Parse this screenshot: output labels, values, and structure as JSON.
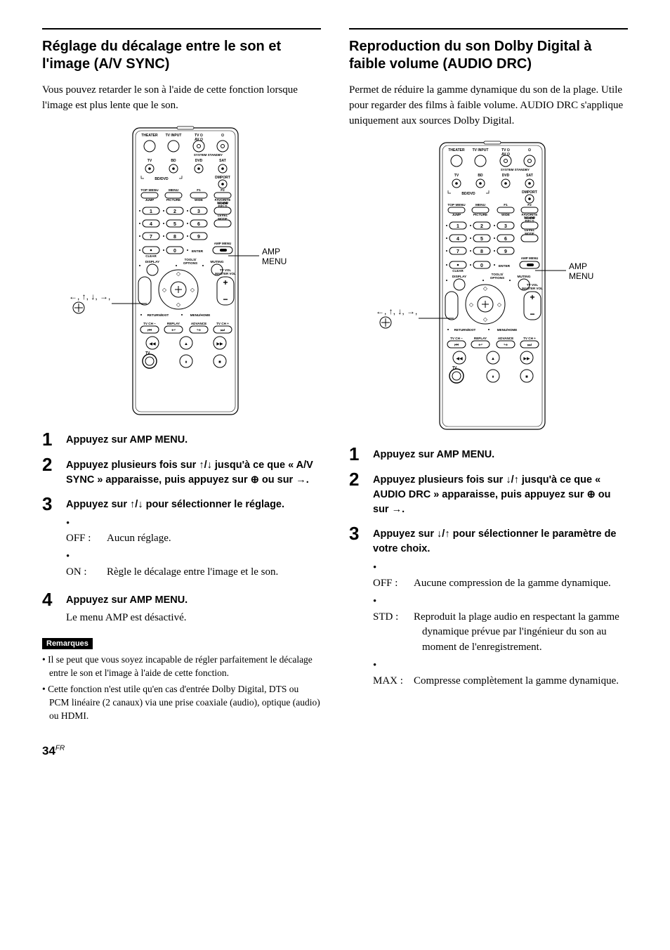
{
  "page_number": "34",
  "page_lang_suffix": "FR",
  "left": {
    "title": "Réglage du décalage entre le son et l'image (A/V SYNC)",
    "intro": "Vous pouvez retarder le son à l'aide de cette fonction lorsque l'image est plus lente que le son.",
    "steps": [
      {
        "n": "1",
        "title": "Appuyez sur AMP MENU."
      },
      {
        "n": "2",
        "title": "Appuyez plusieurs fois sur ↑/↓ jusqu'à ce que « A/V SYNC » apparaisse, puis appuyez sur ⊕ ou sur →."
      },
      {
        "n": "3",
        "title": "Appuyez sur ↑/↓ pour sélectionner le réglage.",
        "bullets": [
          {
            "key": "OFF :",
            "val": "Aucun réglage."
          },
          {
            "key": "ON :",
            "val": "Règle le décalage entre l'image et le son."
          }
        ]
      },
      {
        "n": "4",
        "title": "Appuyez sur AMP MENU.",
        "body": "Le menu AMP est désactivé."
      }
    ],
    "remarques_label": "Remarques",
    "remarques": [
      "Il se peut que vous soyez incapable de régler parfaitement le décalage entre le son et l'image à l'aide de cette fonction.",
      "Cette fonction n'est utile qu'en cas d'entrée Dolby Digital, DTS ou PCM linéaire (2 canaux) via une prise coaxiale (audio), optique (audio) ou HDMI."
    ]
  },
  "right": {
    "title": "Reproduction du son Dolby Digital à faible volume (AUDIO DRC)",
    "intro": "Permet de réduire la gamme dynamique du son de la plage. Utile pour regarder des films à faible volume. AUDIO DRC s'applique uniquement aux sources Dolby Digital.",
    "steps": [
      {
        "n": "1",
        "title": "Appuyez sur AMP MENU."
      },
      {
        "n": "2",
        "title": "Appuyez plusieurs fois sur ↓/↑ jusqu'à ce que « AUDIO DRC » apparaisse, puis appuyez sur ⊕ ou sur →."
      },
      {
        "n": "3",
        "title": "Appuyez sur ↓/↑ pour sélectionner le paramètre de votre choix.",
        "bullets": [
          {
            "key": "OFF :",
            "val": "Aucune compression de la gamme dynamique."
          },
          {
            "key": "STD :",
            "val": "Reproduit la plage audio en respectant la gamme dynamique prévue par l'ingénieur du son au moment de l'enregistrement."
          },
          {
            "key": "MAX :",
            "val": "Compresse complètement la gamme dynamique."
          }
        ]
      }
    ]
  },
  "remote": {
    "callout_amp": "AMP MENU",
    "callout_arrows": "←, ↑, ↓, →,",
    "top_row": [
      "THEATER",
      "TV INPUT",
      "TV ⏻\nAV ⏻",
      "⏻"
    ],
    "standby": "SYSTEM STANDBY",
    "src_row": [
      "TV",
      "BD",
      "DVD",
      "SAT"
    ],
    "dmport": "DMPORT",
    "bddvd": "BD/DVD",
    "menu_row1": [
      "TOP MENU",
      "MENU",
      "F1",
      "F2"
    ],
    "menu_row2": [
      "JUMP",
      "PICTURE",
      "WIDE",
      "FAVORITE\nGUIDE"
    ],
    "field_labels": [
      "SOUND\nFIELD",
      "LEVEL\nMODE",
      "AMP MENU"
    ],
    "clear": "CLEAR",
    "enter": "ENTER",
    "disp_row": [
      "DISPLAY",
      "TOOLS/\nOPTIONS",
      "MUTING"
    ],
    "vol": "TV VOL\nMASTER VOL",
    "return": "RETURN/EXIT",
    "menuhome": "MENU/HOME",
    "bottom_row": [
      "TV CH −",
      "REPLAY",
      "ADVANCE",
      "TV CH +"
    ],
    "tv_label": "TV",
    "colors": {
      "callout_line": "#000000",
      "remote_stroke": "#000000",
      "remote_fill": "#ffffff",
      "text": "#000000"
    }
  }
}
